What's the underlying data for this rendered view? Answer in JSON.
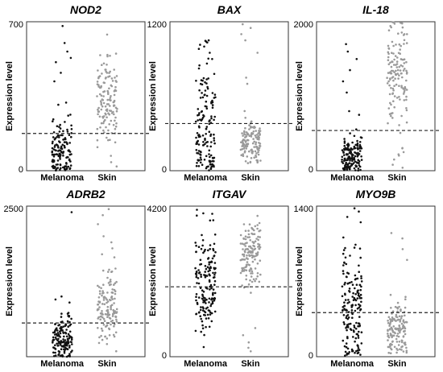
{
  "colors": {
    "melanoma": "#111111",
    "skin": "#9a9a9a",
    "frame": "#333333",
    "threshold": "#222222",
    "background": "#ffffff"
  },
  "chart_data": [
    {
      "type": "scatter",
      "title": "NOD2",
      "ylabel": "Expression level",
      "categories": [
        "Melanoma",
        "Skin"
      ],
      "ylim": [
        0,
        700
      ],
      "yticks": [
        "0",
        "700"
      ],
      "threshold": 175,
      "series": [
        {
          "name": "Melanoma",
          "n": 140,
          "center": 100,
          "spread": 70,
          "min": 0,
          "max": 340,
          "outliers": [
            680,
            600,
            560,
            530,
            510,
            460,
            420,
            320,
            310
          ],
          "seed": 11
        },
        {
          "name": "Skin",
          "n": 130,
          "center": 330,
          "spread": 90,
          "min": 20,
          "max": 640,
          "outliers": [
            640,
            550,
            540,
            70,
            40,
            20
          ],
          "seed": 12
        }
      ]
    },
    {
      "type": "scatter",
      "title": "BAX",
      "ylabel": "Expression level",
      "categories": [
        "Melanoma",
        "Skin"
      ],
      "ylim": [
        0,
        1200
      ],
      "yticks": [
        "0",
        "1200"
      ],
      "threshold": 380,
      "series": [
        {
          "name": "Melanoma",
          "n": 150,
          "center": 380,
          "spread": 280,
          "min": 0,
          "max": 1050,
          "outliers": [
            1050,
            1000,
            950,
            900
          ],
          "seed": 21
        },
        {
          "name": "Skin",
          "n": 130,
          "center": 230,
          "spread": 80,
          "min": 60,
          "max": 1200,
          "outliers": [
            1180,
            1150,
            1100,
            1050,
            950,
            750,
            700
          ],
          "seed": 22
        }
      ]
    },
    {
      "type": "scatter",
      "title": "IL-18",
      "ylabel": "Expression level",
      "categories": [
        "Melanoma",
        "Skin"
      ],
      "ylim": [
        0,
        2000
      ],
      "yticks": [
        "0",
        "2000"
      ],
      "threshold": 540,
      "series": [
        {
          "name": "Melanoma",
          "n": 140,
          "center": 180,
          "spread": 130,
          "min": 0,
          "max": 1700,
          "outliers": [
            1700,
            1600,
            1500,
            1350,
            1200,
            1050,
            800,
            750
          ],
          "seed": 31
        },
        {
          "name": "Skin",
          "n": 140,
          "center": 1300,
          "spread": 350,
          "min": 30,
          "max": 2000,
          "outliers": [
            300,
            250,
            220,
            150,
            80,
            40
          ],
          "seed": 32
        }
      ]
    },
    {
      "type": "scatter",
      "title": "ADRB2",
      "ylabel": "Expression level",
      "categories": [
        "Melanoma",
        "Skin"
      ],
      "ylim": [
        0,
        2500
      ],
      "yticks": [
        "2500"
      ],
      "threshold": 560,
      "series": [
        {
          "name": "Melanoma",
          "n": 150,
          "center": 280,
          "spread": 170,
          "min": 0,
          "max": 800,
          "outliers": [
            2400,
            1000,
            950,
            900
          ],
          "seed": 41
        },
        {
          "name": "Skin",
          "n": 140,
          "center": 850,
          "spread": 280,
          "min": 20,
          "max": 2500,
          "outliers": [
            2450,
            2350,
            2200,
            2000,
            1900,
            1800,
            1700,
            1650
          ],
          "seed": 42
        }
      ]
    },
    {
      "type": "scatter",
      "title": "ITGAV",
      "ylabel": "Expression level",
      "categories": [
        "Melanoma",
        "Skin"
      ],
      "ylim": [
        0,
        4200
      ],
      "yticks": [
        "0",
        "4200"
      ],
      "threshold": 1950,
      "series": [
        {
          "name": "Melanoma",
          "n": 160,
          "center": 1950,
          "spread": 700,
          "min": 100,
          "max": 4200,
          "outliers": [
            4100,
            4000,
            3800
          ],
          "seed": 51
        },
        {
          "name": "Skin",
          "n": 140,
          "center": 2900,
          "spread": 450,
          "min": 100,
          "max": 4000,
          "outliers": [
            800,
            600,
            400,
            250,
            150
          ],
          "seed": 52
        }
      ]
    },
    {
      "type": "scatter",
      "title": "MYO9B",
      "ylabel": "Expression level",
      "categories": [
        "Melanoma",
        "Skin"
      ],
      "ylim": [
        0,
        1400
      ],
      "yticks": [
        "0",
        "1400"
      ],
      "threshold": 410,
      "series": [
        {
          "name": "Melanoma",
          "n": 170,
          "center": 450,
          "spread": 300,
          "min": 10,
          "max": 1400,
          "outliers": [
            1380,
            1350,
            1300,
            1250
          ],
          "seed": 61
        },
        {
          "name": "Skin",
          "n": 140,
          "center": 250,
          "spread": 150,
          "min": 30,
          "max": 1200,
          "outliers": [
            1150,
            1100,
            1000,
            900
          ],
          "seed": 62
        }
      ]
    }
  ]
}
